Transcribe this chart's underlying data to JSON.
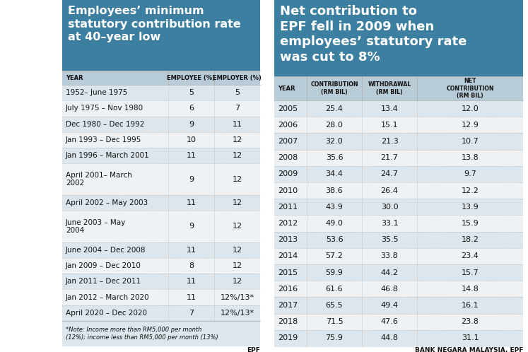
{
  "left_title": "Employees’ minimum\nstatutory contribution rate\nat 40–year low",
  "left_header": [
    "YEAR",
    "EMPLOYEE (%)",
    "EMPLOYER (%)"
  ],
  "left_rows": [
    [
      "1952– June 1975",
      "5",
      "5"
    ],
    [
      "July 1975 – Nov 1980",
      "6",
      "7"
    ],
    [
      "Dec 1980 – Dec 1992",
      "9",
      "11"
    ],
    [
      "Jan 1993 – Dec 1995",
      "10",
      "12"
    ],
    [
      "Jan 1996 – March 2001",
      "11",
      "12"
    ],
    [
      "April 2001– March\n2002",
      "9",
      "12"
    ],
    [
      "April 2002 – May 2003",
      "11",
      "12"
    ],
    [
      "June 2003 – May\n2004",
      "9",
      "12"
    ],
    [
      "June 2004 – Dec 2008",
      "11",
      "12"
    ],
    [
      "Jan 2009 – Dec 2010",
      "8",
      "12"
    ],
    [
      "Jan 2011 – Dec 2011",
      "11",
      "12"
    ],
    [
      "Jan 2012 – March 2020",
      "11",
      "12%/13*"
    ],
    [
      "April 2020 – Dec 2020",
      "7",
      "12%/13*"
    ]
  ],
  "left_note": "*Note: Income more than RM5,000 per month\n(12%); income less than RM5,000 per month (13%)",
  "left_source": "EPF",
  "right_title": "Net contribution to\nEPF fell in 2009 when\nemployees’ statutory rate\nwas cut to 8%",
  "right_header": [
    "YEAR",
    "CONTRIBUTION\n(RM BIL)",
    "WITHDRAWAL\n(RM BIL)",
    "NET\nCONTRIBUTION\n(RM BIL)"
  ],
  "right_rows": [
    [
      "2005",
      "25.4",
      "13.4",
      "12.0"
    ],
    [
      "2006",
      "28.0",
      "15.1",
      "12.9"
    ],
    [
      "2007",
      "32.0",
      "21.3",
      "10.7"
    ],
    [
      "2008",
      "35.6",
      "21.7",
      "13.8"
    ],
    [
      "2009",
      "34.4",
      "24.7",
      "9.7"
    ],
    [
      "2010",
      "38.6",
      "26.4",
      "12.2"
    ],
    [
      "2011",
      "43.9",
      "30.0",
      "13.9"
    ],
    [
      "2012",
      "49.0",
      "33.1",
      "15.9"
    ],
    [
      "2013",
      "53.6",
      "35.5",
      "18.2"
    ],
    [
      "2014",
      "57.2",
      "33.8",
      "23.4"
    ],
    [
      "2015",
      "59.9",
      "44.2",
      "15.7"
    ],
    [
      "2016",
      "61.6",
      "46.8",
      "14.8"
    ],
    [
      "2017",
      "65.5",
      "49.4",
      "16.1"
    ],
    [
      "2018",
      "71.5",
      "47.6",
      "23.8"
    ],
    [
      "2019",
      "75.9",
      "44.8",
      "31.1"
    ]
  ],
  "right_source": "BANK NEGARA MALAYSIA, EPF",
  "header_bg": "#3d7fa0",
  "header_text_color": "#ffffff",
  "table_header_bg": "#b8ccd8",
  "table_bg_even": "#dce6ec",
  "table_bg_odd": "#eef2f5",
  "note_bg": "#dce6ec",
  "title_font_size": 11.5,
  "header_font_size": 6.0,
  "cell_font_size": 8.0,
  "note_font_size": 6.5,
  "source_font_size": 6.5
}
